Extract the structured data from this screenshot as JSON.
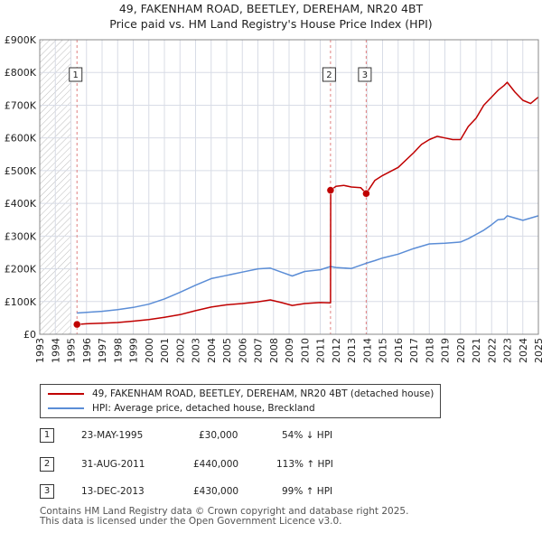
{
  "header": {
    "title_line1": "49, FAKENHAM ROAD, BEETLEY, DEREHAM, NR20 4BT",
    "title_line2": "Price paid vs. HM Land Registry's House Price Index (HPI)"
  },
  "legend": {
    "property_label": "49, FAKENHAM ROAD, BEETLEY, DEREHAM, NR20 4BT (detached house)",
    "hpi_label": "HPI: Average price, detached house, Breckland"
  },
  "colors": {
    "property": "#c00000",
    "hpi": "#5b8dd6",
    "hatch": "#bbbbbb",
    "grid": "#d8dce6",
    "marker_line": "#e08080"
  },
  "chart_data": {
    "type": "line",
    "title": "49, FAKENHAM ROAD, BEETLEY, DEREHAM, NR20 4BT",
    "xlim": [
      1993,
      2025
    ],
    "ylim": [
      0,
      900000
    ],
    "x_ticks": [
      "1993",
      "1994",
      "1995",
      "1996",
      "1997",
      "1998",
      "1999",
      "2000",
      "2001",
      "2002",
      "2003",
      "2004",
      "2005",
      "2006",
      "2007",
      "2008",
      "2009",
      "2010",
      "2011",
      "2012",
      "2013",
      "2014",
      "2015",
      "2016",
      "2017",
      "2018",
      "2019",
      "2020",
      "2021",
      "2022",
      "2023",
      "2024",
      "2025"
    ],
    "y_ticks": [
      {
        "v": 0,
        "label": "£0"
      },
      {
        "v": 100000,
        "label": "£100K"
      },
      {
        "v": 200000,
        "label": "£200K"
      },
      {
        "v": 300000,
        "label": "£300K"
      },
      {
        "v": 400000,
        "label": "£400K"
      },
      {
        "v": 500000,
        "label": "£500K"
      },
      {
        "v": 600000,
        "label": "£600K"
      },
      {
        "v": 700000,
        "label": "£700K"
      },
      {
        "v": 800000,
        "label": "£800K"
      },
      {
        "v": 900000,
        "label": "£900K"
      }
    ],
    "hatch_range": [
      1993,
      1995.0
    ],
    "series": [
      {
        "name": "49, FAKENHAM ROAD, BEETLEY, DEREHAM, NR20 4BT (detached house)",
        "x": [
          1995.39,
          1996,
          1997,
          1998,
          1999,
          2000,
          2001,
          2002,
          2003,
          2004,
          2005,
          2006,
          2007,
          2007.8,
          2008.5,
          2009.2,
          2010,
          2011,
          2011.66,
          2011.67,
          2012,
          2012.5,
          2013,
          2013.6,
          2013.95,
          2014.5,
          2015,
          2016,
          2017,
          2017.5,
          2018,
          2018.5,
          2019,
          2019.5,
          2020,
          2020.5,
          2021,
          2021.5,
          2022,
          2022.4,
          2022.8,
          2023,
          2023.5,
          2024,
          2024.5,
          2025
        ],
        "y": [
          30000,
          32000,
          34000,
          36000,
          40000,
          45000,
          52000,
          60000,
          72000,
          83000,
          90000,
          94000,
          99000,
          105000,
          97000,
          88000,
          94000,
          97000,
          96000,
          440000,
          452000,
          455000,
          450000,
          448000,
          430000,
          470000,
          485000,
          510000,
          555000,
          580000,
          595000,
          605000,
          600000,
          595000,
          595000,
          635000,
          660000,
          700000,
          725000,
          745000,
          760000,
          770000,
          740000,
          715000,
          705000,
          725000
        ]
      },
      {
        "name": "HPI: Average price, detached house, Breckland",
        "x": [
          1995.39,
          1996,
          1997,
          1998,
          1999,
          2000,
          2001,
          2002,
          2003,
          2004,
          2005,
          2006,
          2007,
          2007.8,
          2008.5,
          2009.2,
          2010,
          2011,
          2011.66,
          2012,
          2013,
          2013.95,
          2014.5,
          2015,
          2016,
          2017,
          2018,
          2019,
          2020,
          2020.5,
          2021,
          2021.5,
          2022,
          2022.4,
          2022.8,
          2023,
          2023.5,
          2024,
          2024.5,
          2025
        ],
        "y": [
          65000,
          67000,
          70000,
          75000,
          82000,
          92000,
          108000,
          128000,
          150000,
          170000,
          180000,
          190000,
          200000,
          202000,
          190000,
          178000,
          192000,
          197000,
          207000,
          204000,
          201000,
          217000,
          225000,
          233000,
          245000,
          262000,
          276000,
          278000,
          282000,
          292000,
          305000,
          318000,
          335000,
          350000,
          352000,
          362000,
          355000,
          348000,
          355000,
          362000
        ]
      }
    ],
    "sales": [
      {
        "num": "1",
        "x": 1995.39,
        "y": 30000
      },
      {
        "num": "2",
        "x": 2011.66,
        "y": 440000
      },
      {
        "num": "3",
        "x": 2013.95,
        "y": 430000
      }
    ]
  },
  "table": [
    {
      "num": "1",
      "date": "23-MAY-1995",
      "price": "£30,000",
      "hpi": "54% ↓ HPI"
    },
    {
      "num": "2",
      "date": "31-AUG-2011",
      "price": "£440,000",
      "hpi": "113% ↑ HPI"
    },
    {
      "num": "3",
      "date": "13-DEC-2013",
      "price": "£430,000",
      "hpi": "99% ↑ HPI"
    }
  ],
  "footer": {
    "line1": "Contains HM Land Registry data © Crown copyright and database right 2025.",
    "line2": "This data is licensed under the Open Government Licence v3.0."
  }
}
